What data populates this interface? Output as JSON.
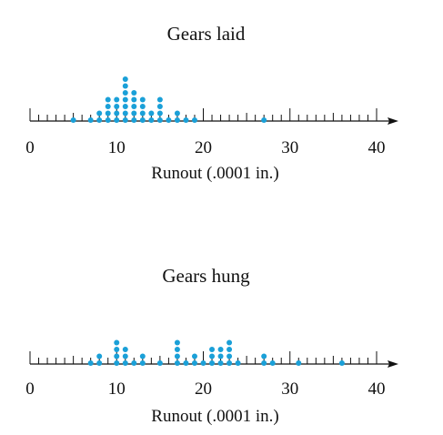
{
  "chart_data": [
    {
      "type": "scatter",
      "subtype": "dot-plot",
      "title": "Gears laid",
      "xlabel": "Runout (.0001 in.)",
      "xlim": [
        0,
        40
      ],
      "major_ticks": [
        "0",
        "10",
        "20",
        "30",
        "40"
      ],
      "minor_tick_step": 1,
      "point_color": "#1aa0d8",
      "counts": [
        {
          "x": 5,
          "count": 1
        },
        {
          "x": 7,
          "count": 1
        },
        {
          "x": 8,
          "count": 2
        },
        {
          "x": 9,
          "count": 4
        },
        {
          "x": 10,
          "count": 4
        },
        {
          "x": 11,
          "count": 7
        },
        {
          "x": 12,
          "count": 5
        },
        {
          "x": 13,
          "count": 4
        },
        {
          "x": 14,
          "count": 2
        },
        {
          "x": 15,
          "count": 4
        },
        {
          "x": 16,
          "count": 1
        },
        {
          "x": 17,
          "count": 2
        },
        {
          "x": 18,
          "count": 1
        },
        {
          "x": 19,
          "count": 1
        },
        {
          "x": 27,
          "count": 1
        }
      ]
    },
    {
      "type": "scatter",
      "subtype": "dot-plot",
      "title": "Gears hung",
      "xlabel": "Runout (.0001 in.)",
      "xlim": [
        0,
        40
      ],
      "major_ticks": [
        "0",
        "10",
        "20",
        "30",
        "40"
      ],
      "minor_tick_step": 1,
      "point_color": "#1aa0d8",
      "counts": [
        {
          "x": 7,
          "count": 1
        },
        {
          "x": 8,
          "count": 2
        },
        {
          "x": 10,
          "count": 4
        },
        {
          "x": 11,
          "count": 3
        },
        {
          "x": 12,
          "count": 1
        },
        {
          "x": 13,
          "count": 2
        },
        {
          "x": 15,
          "count": 1
        },
        {
          "x": 17,
          "count": 4
        },
        {
          "x": 18,
          "count": 1
        },
        {
          "x": 19,
          "count": 2
        },
        {
          "x": 20,
          "count": 1
        },
        {
          "x": 21,
          "count": 3
        },
        {
          "x": 22,
          "count": 3
        },
        {
          "x": 23,
          "count": 4
        },
        {
          "x": 24,
          "count": 1
        },
        {
          "x": 27,
          "count": 2
        },
        {
          "x": 28,
          "count": 1
        },
        {
          "x": 31,
          "count": 1
        },
        {
          "x": 36,
          "count": 1
        }
      ]
    }
  ]
}
